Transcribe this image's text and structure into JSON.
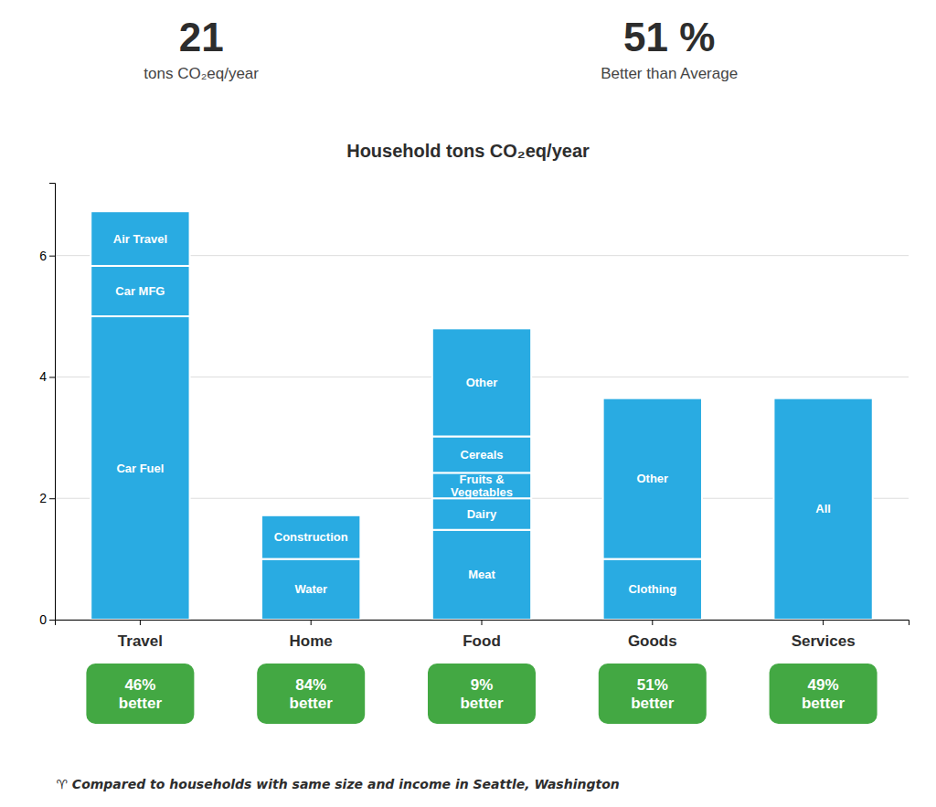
{
  "chart_data": {
    "type": "bar",
    "stacked": true,
    "title": "Household tons CO₂eq/year",
    "headers": [
      {
        "text": "21",
        "caption": "tons CO₂eq/year"
      },
      {
        "text": "51 %",
        "caption": "Better than Average"
      }
    ],
    "categories": [
      "Travel",
      "Home",
      "Food",
      "Goods",
      "Services"
    ],
    "stacks": [
      [
        {
          "label": "Car Fuel",
          "value": 5.0
        },
        {
          "label": "Car MFG",
          "value": 0.83
        },
        {
          "label": "Air Travel",
          "value": 0.9
        }
      ],
      [
        {
          "label": "Water",
          "value": 1.0
        },
        {
          "label": "Construction",
          "value": 0.72
        }
      ],
      [
        {
          "label": "Meat",
          "value": 1.48
        },
        {
          "label": "Dairy",
          "value": 0.52
        },
        {
          "label": "Fruits &\nVegetables",
          "value": 0.42
        },
        {
          "label": "Cereals",
          "value": 0.6
        },
        {
          "label": "Other",
          "value": 1.78
        }
      ],
      [
        {
          "label": "Clothing",
          "value": 1.0
        },
        {
          "label": "Other",
          "value": 2.65
        }
      ],
      [
        {
          "label": "All",
          "value": 3.65
        }
      ]
    ],
    "color": "#29ABE2",
    "ylim": [
      0,
      7.2
    ],
    "yticks": [
      0,
      2,
      4,
      6
    ],
    "grid": true,
    "badges": {
      "labels": [
        "46%\nbetter",
        "84%\nbetter",
        "9%\nbetter",
        "51%\nbetter",
        "49%\nbetter"
      ],
      "color": "#43A843"
    },
    "footer": "♈ Compared to households with same size and income in Seattle, Washington"
  }
}
